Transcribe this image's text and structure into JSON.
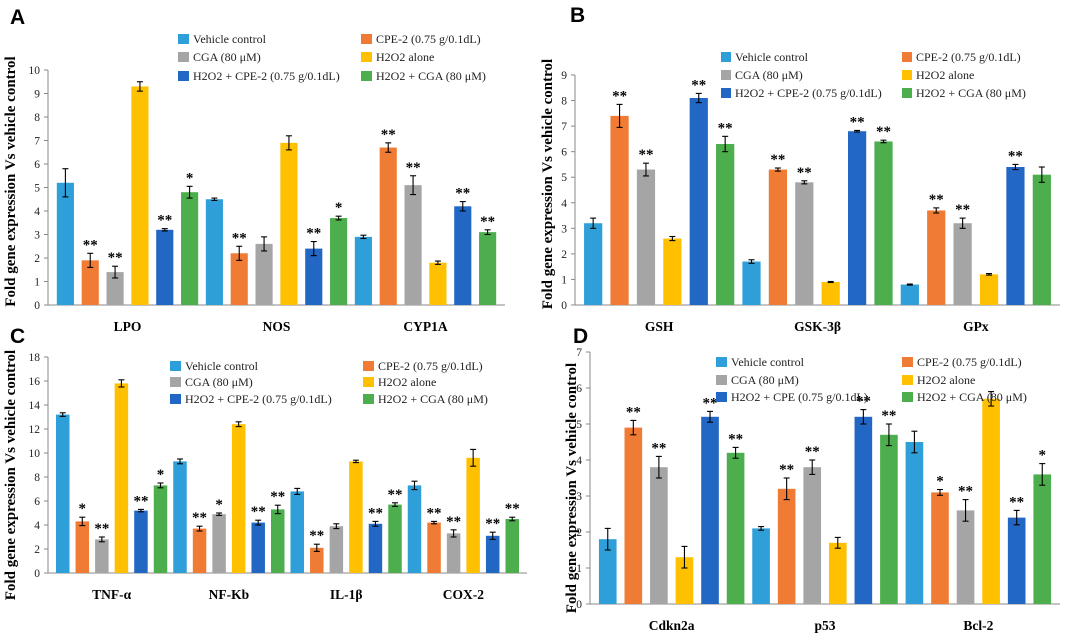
{
  "colors": {
    "Vehicle control": "#2e9fd8",
    "CPE-2": "#f07b34",
    "CGA": "#a5a5a5",
    "H2O2 alone": "#ffc000",
    "H2O2 + CPE-2": "#2267c3",
    "H2O2 + CGA": "#4cae4c"
  },
  "chart_data": [
    {
      "type": "bar",
      "label": "A",
      "ylabel": "Fold gene expression Vs vehicle control",
      "ylim": [
        0,
        10
      ],
      "yticks": [
        "0",
        "1",
        "2",
        "3",
        "4",
        "5",
        "6",
        "7",
        "8",
        "9",
        "10"
      ],
      "categories": [
        "LPO",
        "NOS",
        "CYP1A"
      ],
      "legend": [
        "Vehicle control",
        "CPE-2 (0.75 g/0.1dL)",
        "CGA (80 μM)",
        "H2O2 alone",
        "H2O2 + CPE-2 (0.75 g/0.1dL)",
        "H2O2 + CGA (80 μM)"
      ],
      "series": [
        {
          "name": "Vehicle control",
          "values": [
            5.2,
            4.5,
            2.9
          ],
          "errors": [
            0.6,
            0.05,
            0.07
          ],
          "sig": [
            "",
            "",
            ""
          ]
        },
        {
          "name": "CPE-2 (0.75 g/0.1dL)",
          "values": [
            1.9,
            2.2,
            6.7
          ],
          "errors": [
            0.3,
            0.3,
            0.2
          ],
          "sig": [
            "**",
            "**",
            "**"
          ]
        },
        {
          "name": "CGA (80 μM)",
          "values": [
            1.4,
            2.6,
            5.1
          ],
          "errors": [
            0.25,
            0.3,
            0.4
          ],
          "sig": [
            "**",
            "",
            "**"
          ]
        },
        {
          "name": "H2O2 alone",
          "values": [
            9.3,
            6.9,
            1.8
          ],
          "errors": [
            0.2,
            0.3,
            0.07
          ],
          "sig": [
            "",
            "",
            ""
          ]
        },
        {
          "name": "H2O2 + CPE-2 (0.75 g/0.1dL)",
          "values": [
            3.2,
            2.4,
            4.2
          ],
          "errors": [
            0.05,
            0.3,
            0.2
          ],
          "sig": [
            "**",
            "**",
            "**"
          ]
        },
        {
          "name": "H2O2 + CGA (80 μM)",
          "values": [
            4.8,
            3.7,
            3.1
          ],
          "errors": [
            0.25,
            0.08,
            0.1
          ],
          "sig": [
            "*",
            "*",
            "**"
          ]
        }
      ]
    },
    {
      "type": "bar",
      "label": "B",
      "ylabel": "Fold gene expression Vs vehicle control",
      "ylim": [
        0,
        9
      ],
      "yticks": [
        "0",
        "1",
        "2",
        "3",
        "4",
        "5",
        "6",
        "7",
        "8",
        "9"
      ],
      "categories": [
        "GSH",
        "GSK-3β",
        "GPx"
      ],
      "legend": [
        "Vehicle control",
        "CPE-2 (0.75 g/0.1dL)",
        "CGA (80 μM)",
        "H2O2 alone",
        "H2O2 + CPE-2 (0.75 g/0.1dL)",
        "H2O2 + CGA (80 μM)"
      ],
      "series": [
        {
          "name": "Vehicle control",
          "values": [
            3.2,
            1.7,
            0.8
          ],
          "errors": [
            0.2,
            0.07,
            0.02
          ],
          "sig": [
            "",
            "",
            ""
          ]
        },
        {
          "name": "CPE-2 (0.75 g/0.1dL)",
          "values": [
            7.4,
            5.3,
            3.7
          ],
          "errors": [
            0.45,
            0.06,
            0.1
          ],
          "sig": [
            "**",
            "**",
            "**"
          ]
        },
        {
          "name": "CGA (80 μM)",
          "values": [
            5.3,
            4.8,
            3.2
          ],
          "errors": [
            0.25,
            0.06,
            0.2
          ],
          "sig": [
            "**",
            "**",
            "**"
          ]
        },
        {
          "name": "H2O2 alone",
          "values": [
            2.6,
            0.9,
            1.2
          ],
          "errors": [
            0.08,
            0.02,
            0.03
          ],
          "sig": [
            "",
            "",
            ""
          ]
        },
        {
          "name": "H2O2 + CPE-2 (0.75 g/0.1dL)",
          "values": [
            8.1,
            6.8,
            5.4
          ],
          "errors": [
            0.18,
            0.03,
            0.1
          ],
          "sig": [
            "**",
            "**",
            "**"
          ]
        },
        {
          "name": "H2O2 + CGA (80 μM)",
          "values": [
            6.3,
            6.4,
            5.1
          ],
          "errors": [
            0.3,
            0.05,
            0.3
          ],
          "sig": [
            "**",
            "**",
            ""
          ]
        }
      ]
    },
    {
      "type": "bar",
      "label": "C",
      "ylabel": "Fold gene expression Vs vehicle control",
      "ylim": [
        0,
        18
      ],
      "yticks": [
        "0",
        "2",
        "4",
        "6",
        "8",
        "10",
        "12",
        "14",
        "16",
        "18"
      ],
      "categories": [
        "TNF-α",
        "NF-Kb",
        "IL-1β",
        "COX-2"
      ],
      "legend": [
        "Vehicle control",
        "CPE-2 (0.75 g/0.1dL)",
        "CGA (80 μM)",
        "H2O2 alone",
        "H2O2 + CPE-2 (0.75 g/0.1dL)",
        "H2O2 + CGA (80 μM)"
      ],
      "series": [
        {
          "name": "Vehicle control",
          "values": [
            13.2,
            9.3,
            6.8,
            7.3
          ],
          "errors": [
            0.15,
            0.2,
            0.25,
            0.35
          ],
          "sig": [
            "",
            "",
            "",
            ""
          ]
        },
        {
          "name": "CPE-2 (0.75 g/0.1dL)",
          "values": [
            4.3,
            3.7,
            2.1,
            4.2
          ],
          "errors": [
            0.35,
            0.2,
            0.3,
            0.1
          ],
          "sig": [
            "*",
            "**",
            "**",
            "**"
          ]
        },
        {
          "name": "CGA (80 μM)",
          "values": [
            2.8,
            4.9,
            3.9,
            3.3
          ],
          "errors": [
            0.2,
            0.1,
            0.2,
            0.3
          ],
          "sig": [
            "**",
            "*",
            "",
            "**"
          ]
        },
        {
          "name": "H2O2 alone",
          "values": [
            15.8,
            12.4,
            9.3,
            9.6
          ],
          "errors": [
            0.3,
            0.2,
            0.1,
            0.7
          ],
          "sig": [
            "",
            "",
            "",
            ""
          ]
        },
        {
          "name": "H2O2 + CPE-2 (0.75 g/0.1dL)",
          "values": [
            5.2,
            4.2,
            4.1,
            3.1
          ],
          "errors": [
            0.1,
            0.2,
            0.2,
            0.3
          ],
          "sig": [
            "**",
            "**",
            "**",
            "**"
          ]
        },
        {
          "name": "H2O2 + CGA (80 μM)",
          "values": [
            7.3,
            5.3,
            5.7,
            4.5
          ],
          "errors": [
            0.2,
            0.35,
            0.15,
            0.15
          ],
          "sig": [
            "*",
            "**",
            "**",
            "**"
          ]
        }
      ]
    },
    {
      "type": "bar",
      "label": "D",
      "ylabel": "Fold gene expression Vs vehicle control",
      "ylim": [
        0,
        7
      ],
      "yticks": [
        "0",
        "1",
        "2",
        "3",
        "4",
        "5",
        "6",
        "7"
      ],
      "categories": [
        "Cdkn2a",
        "p53",
        "Bcl-2"
      ],
      "legend": [
        "Vehicle control",
        "CPE-2 (0.75 g/0.1dL)",
        "CGA (80 μM)",
        "H2O2 alone",
        "H2O2 + CPE (0.75 g/0.1dL)",
        "H2O2 + CGA (80 μM)"
      ],
      "series": [
        {
          "name": "Vehicle control",
          "values": [
            1.8,
            2.1,
            4.5
          ],
          "errors": [
            0.3,
            0.05,
            0.3
          ],
          "sig": [
            "",
            "",
            ""
          ]
        },
        {
          "name": "CPE-2 (0.75 g/0.1dL)",
          "values": [
            4.9,
            3.2,
            3.1
          ],
          "errors": [
            0.2,
            0.3,
            0.08
          ],
          "sig": [
            "**",
            "**",
            "*"
          ]
        },
        {
          "name": "CGA (80 μM)",
          "values": [
            3.8,
            3.8,
            2.6
          ],
          "errors": [
            0.3,
            0.2,
            0.3
          ],
          "sig": [
            "**",
            "**",
            "**"
          ]
        },
        {
          "name": "H2O2 alone",
          "values": [
            1.3,
            1.7,
            5.7
          ],
          "errors": [
            0.3,
            0.15,
            0.2
          ],
          "sig": [
            "",
            "",
            ""
          ]
        },
        {
          "name": "H2O2 + CPE (0.75 g/0.1dL)",
          "values": [
            5.2,
            5.2,
            2.4
          ],
          "errors": [
            0.15,
            0.2,
            0.2
          ],
          "sig": [
            "**",
            "**",
            "**"
          ]
        },
        {
          "name": "H2O2 + CGA (80 μM)",
          "values": [
            4.2,
            4.7,
            3.6
          ],
          "errors": [
            0.15,
            0.3,
            0.3
          ],
          "sig": [
            "**",
            "**",
            "*"
          ]
        }
      ]
    }
  ]
}
